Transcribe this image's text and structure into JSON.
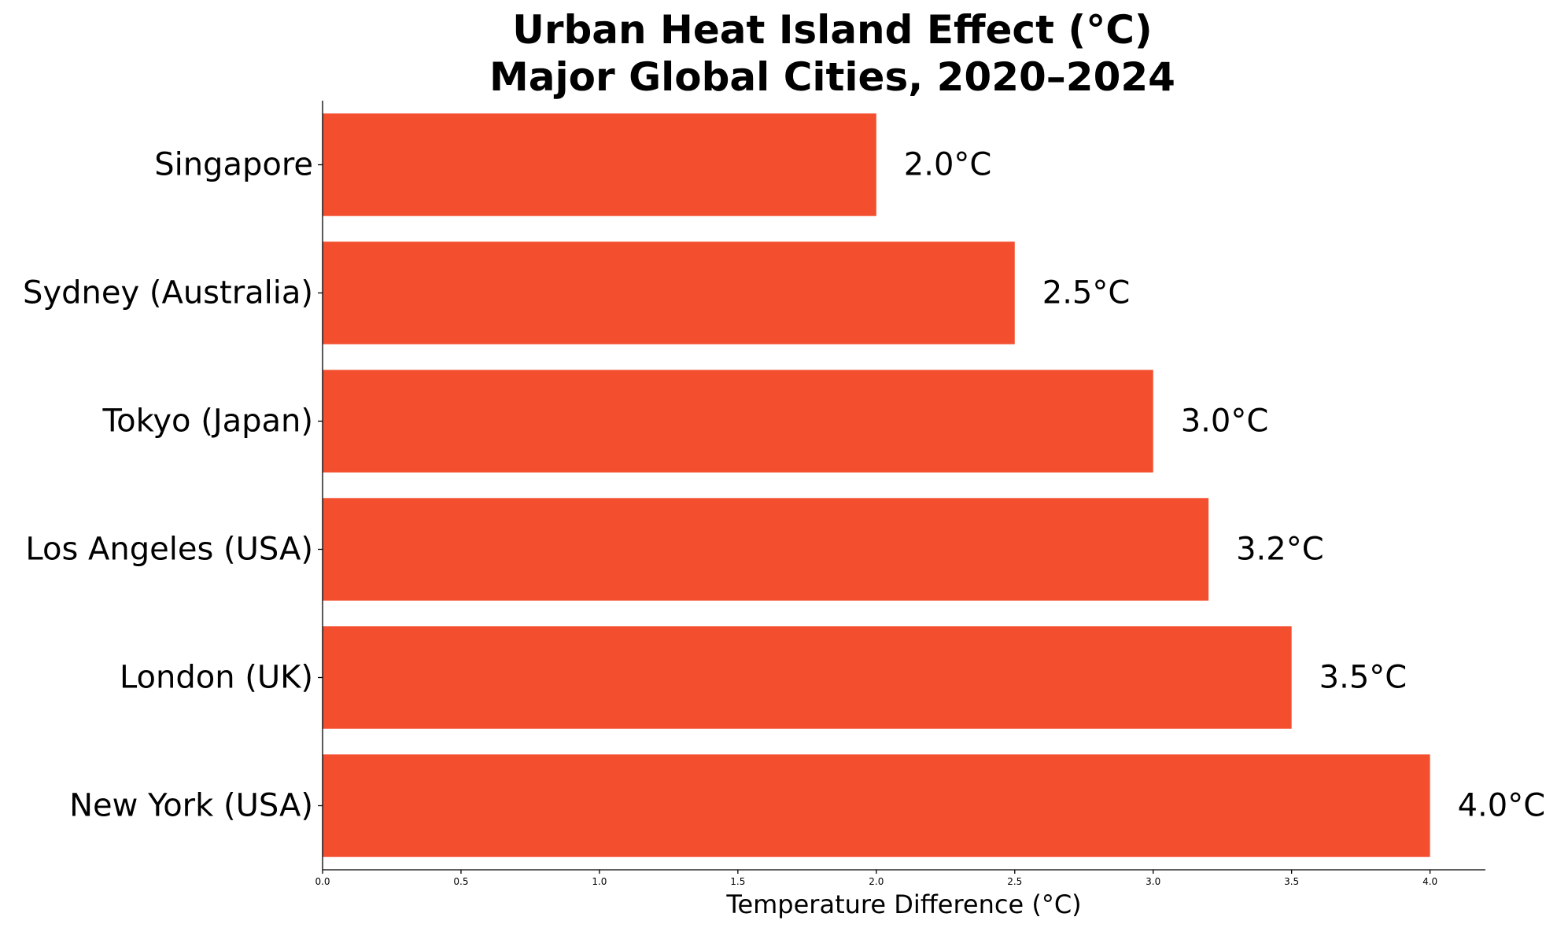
{
  "chart_data": {
    "type": "bar",
    "orientation": "horizontal",
    "title": "Urban Heat Island Effect (°C)",
    "subtitle": "Major Global Cities, 2020–2024",
    "categories": [
      "Singapore",
      "Sydney (Australia)",
      "Tokyo (Japan)",
      "Los Angeles (USA)",
      "London (UK)",
      "New York (USA)"
    ],
    "values": [
      2.0,
      2.5,
      3.0,
      3.2,
      3.5,
      4.0
    ],
    "value_labels": [
      "2.0°C",
      "2.5°C",
      "3.0°C",
      "3.2°C",
      "3.5°C",
      "4.0°C"
    ],
    "xlabel": "Temperature Difference (°C)",
    "ylabel": "",
    "xlim": [
      0,
      4.2
    ],
    "xticks": [
      0.0,
      0.5,
      1.0,
      1.5,
      2.0,
      2.5,
      3.0,
      3.5,
      4.0
    ],
    "xtick_labels": [
      "0.0",
      "0.5",
      "1.0",
      "1.5",
      "2.0",
      "2.5",
      "3.0",
      "3.5",
      "4.0"
    ],
    "grid": false,
    "bar_color": "#f34f2f"
  }
}
